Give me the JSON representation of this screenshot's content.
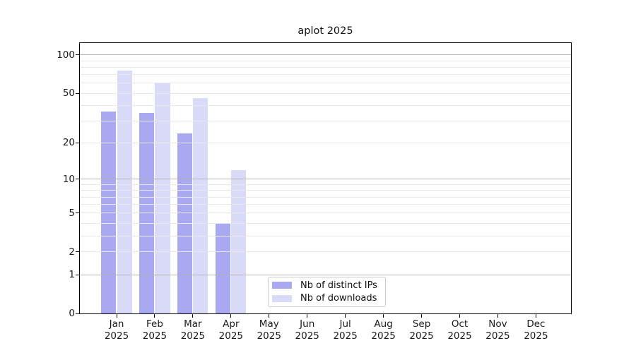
{
  "chart_data": {
    "type": "bar",
    "title": "aplot 2025",
    "categories": [
      "Jan",
      "Feb",
      "Mar",
      "Apr",
      "May",
      "Jun",
      "Jul",
      "Aug",
      "Sep",
      "Oct",
      "Nov",
      "Dec"
    ],
    "category_year": "2025",
    "series": [
      {
        "name": "Nb of distinct IPs",
        "color": "#a9a9f2",
        "values": [
          36,
          35,
          24,
          4,
          0,
          0,
          0,
          0,
          0,
          0,
          0,
          0
        ]
      },
      {
        "name": "Nb of downloads",
        "color": "#d9d9f8",
        "values": [
          75,
          61,
          46,
          12,
          0,
          0,
          0,
          0,
          0,
          0,
          0,
          0
        ]
      }
    ],
    "yaxis": {
      "scale": "log1p",
      "ticks": [
        0,
        1,
        2,
        5,
        10,
        20,
        50,
        100
      ],
      "minor_gridlines": [
        2,
        3,
        4,
        5,
        6,
        7,
        8,
        9,
        20,
        30,
        40,
        50,
        60,
        70,
        80,
        90
      ],
      "major_gridlines": [
        1,
        10,
        100
      ],
      "ylim": [
        0,
        124
      ],
      "grid": "both"
    },
    "xlabel": "",
    "ylabel": "",
    "legend": {
      "position": "lower center"
    },
    "colors": {
      "major_grid": "#b2b2b2",
      "minor_grid": "#e8e8e8",
      "spine": "#000000",
      "text": "#1a1a1a"
    }
  }
}
